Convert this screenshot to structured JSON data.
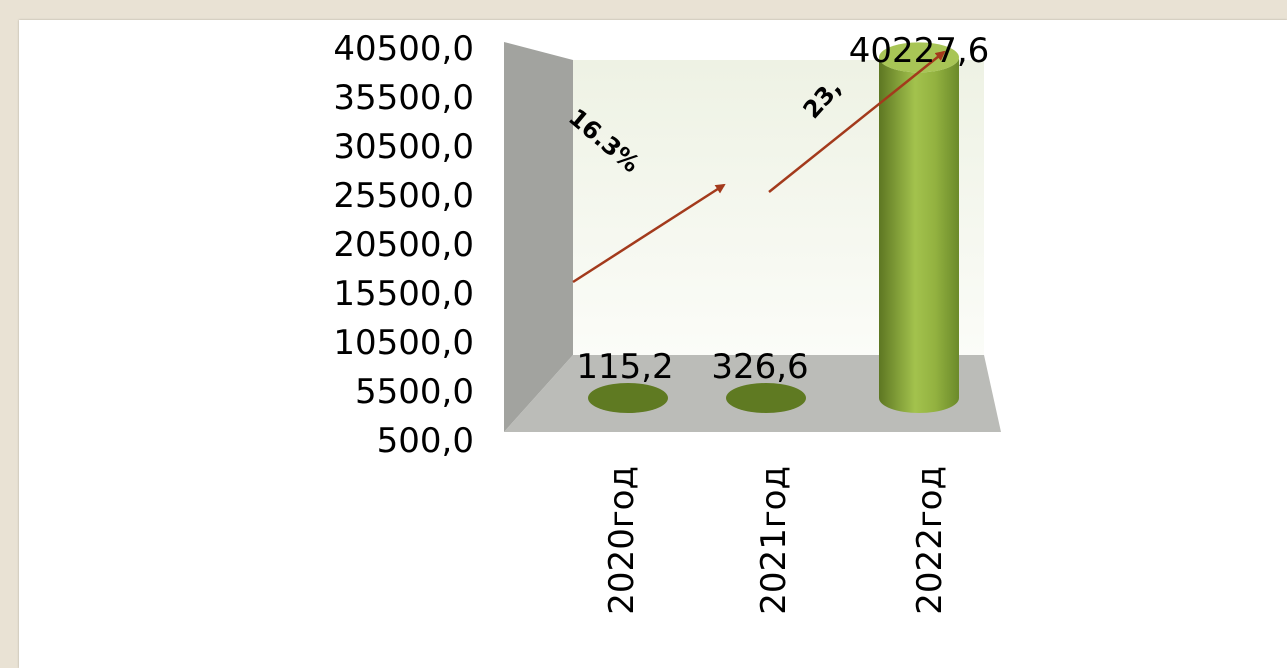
{
  "chart_data": {
    "type": "bar",
    "style": "3d-cylinder",
    "categories": [
      "2020год",
      "2021год",
      "2022год"
    ],
    "values": [
      115.2,
      326.6,
      40227.6
    ],
    "value_labels": [
      "115,2",
      "326,6",
      "40227,6"
    ],
    "y_ticks": [
      "500,0",
      "5500,0",
      "10500,0",
      "15500,0",
      "20500,0",
      "25500,0",
      "30500,0",
      "35500,0",
      "40500,0"
    ],
    "ylim": [
      500,
      40500
    ],
    "title": "",
    "xlabel": "",
    "ylabel": "",
    "grid": false,
    "legend": "none",
    "annotations": [
      {
        "text": "16.3%",
        "from": "2020год",
        "to": "2021год"
      },
      {
        "text": "23,",
        "from": "2021год",
        "to": "2022год"
      }
    ],
    "colors": {
      "bar": "#8fae3b",
      "bar_dark": "#5f7a22",
      "wall": "#a2a39f",
      "floor": "#b9bab6",
      "back_wall": "#f4f6ee",
      "arrow": "#a33a1c"
    }
  }
}
